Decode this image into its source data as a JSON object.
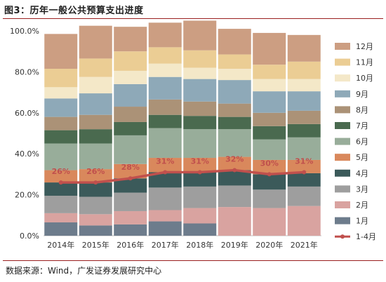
{
  "header": {
    "title": "图3：历年一般公共预算支出进度"
  },
  "footer": {
    "source": "数据来源：Wind，广发证券发展研究中心"
  },
  "chart_data": {
    "type": "bar",
    "stacked": true,
    "categories": [
      "2014年",
      "2015年",
      "2016年",
      "2017年",
      "2018年",
      "2019年",
      "2020年",
      "2021年"
    ],
    "ylim": [
      0,
      100
    ],
    "yticks": [
      "0.0%",
      "20.0%",
      "40.0%",
      "60.0%",
      "80.0%",
      "100.0%"
    ],
    "ytick_values": [
      0,
      20,
      40,
      60,
      80,
      100
    ],
    "legend_position": "right",
    "series": [
      {
        "name": "1月",
        "color": "#6d7c8c",
        "values": [
          6.5,
          5.0,
          5.5,
          7.0,
          6.0,
          0,
          0,
          0
        ]
      },
      {
        "name": "2月",
        "color": "#d9a3a0",
        "values": [
          4.5,
          5.5,
          6.5,
          5.5,
          7.5,
          14.0,
          13.5,
          14.5
        ]
      },
      {
        "name": "3月",
        "color": "#9e9e9e",
        "values": [
          8.5,
          8.5,
          9.0,
          11.0,
          10.5,
          10.5,
          9.0,
          9.5
        ]
      },
      {
        "name": "4月",
        "color": "#3b5a5a",
        "values": [
          6.5,
          7.0,
          7.0,
          7.5,
          7.0,
          7.5,
          7.5,
          6.5
        ]
      },
      {
        "name": "5月",
        "color": "#d9885c",
        "values": [
          6.0,
          6.5,
          7.0,
          7.0,
          7.0,
          6.5,
          7.0,
          6.5
        ]
      },
      {
        "name": "6月",
        "color": "#98ad9a",
        "values": [
          13.0,
          12.5,
          14.0,
          14.5,
          14.0,
          13.5,
          10.0,
          11.0
        ]
      },
      {
        "name": "7月",
        "color": "#4a6a4f",
        "values": [
          6.5,
          7.0,
          6.5,
          6.5,
          6.5,
          6.0,
          6.5,
          6.5
        ]
      },
      {
        "name": "8月",
        "color": "#ab9277",
        "values": [
          6.5,
          7.0,
          7.5,
          7.5,
          7.0,
          6.5,
          6.5,
          6.5
        ]
      },
      {
        "name": "9月",
        "color": "#8ea9b8",
        "values": [
          9.0,
          10.5,
          11.0,
          11.0,
          11.0,
          11.5,
          10.5,
          9.5
        ]
      },
      {
        "name": "10月",
        "color": "#f4e8c8",
        "values": [
          5.5,
          8.0,
          6.5,
          6.5,
          5.5,
          5.5,
          6.0,
          6.0
        ]
      },
      {
        "name": "11月",
        "color": "#ebcd94",
        "values": [
          9.0,
          9.0,
          9.5,
          8.0,
          8.5,
          7.0,
          7.0,
          8.5
        ]
      },
      {
        "name": "12月",
        "color": "#cc9e82",
        "values": [
          17.0,
          16.0,
          12.0,
          12.0,
          14.5,
          12.5,
          15.5,
          13.0
        ]
      }
    ],
    "line": {
      "name": "1-4月",
      "color": "#c0504d",
      "values": [
        26,
        26,
        28,
        31,
        31,
        32,
        30,
        31
      ],
      "labels": [
        "26%",
        "26%",
        "28%",
        "31%",
        "31%",
        "32%",
        "30%",
        "31%"
      ]
    }
  }
}
